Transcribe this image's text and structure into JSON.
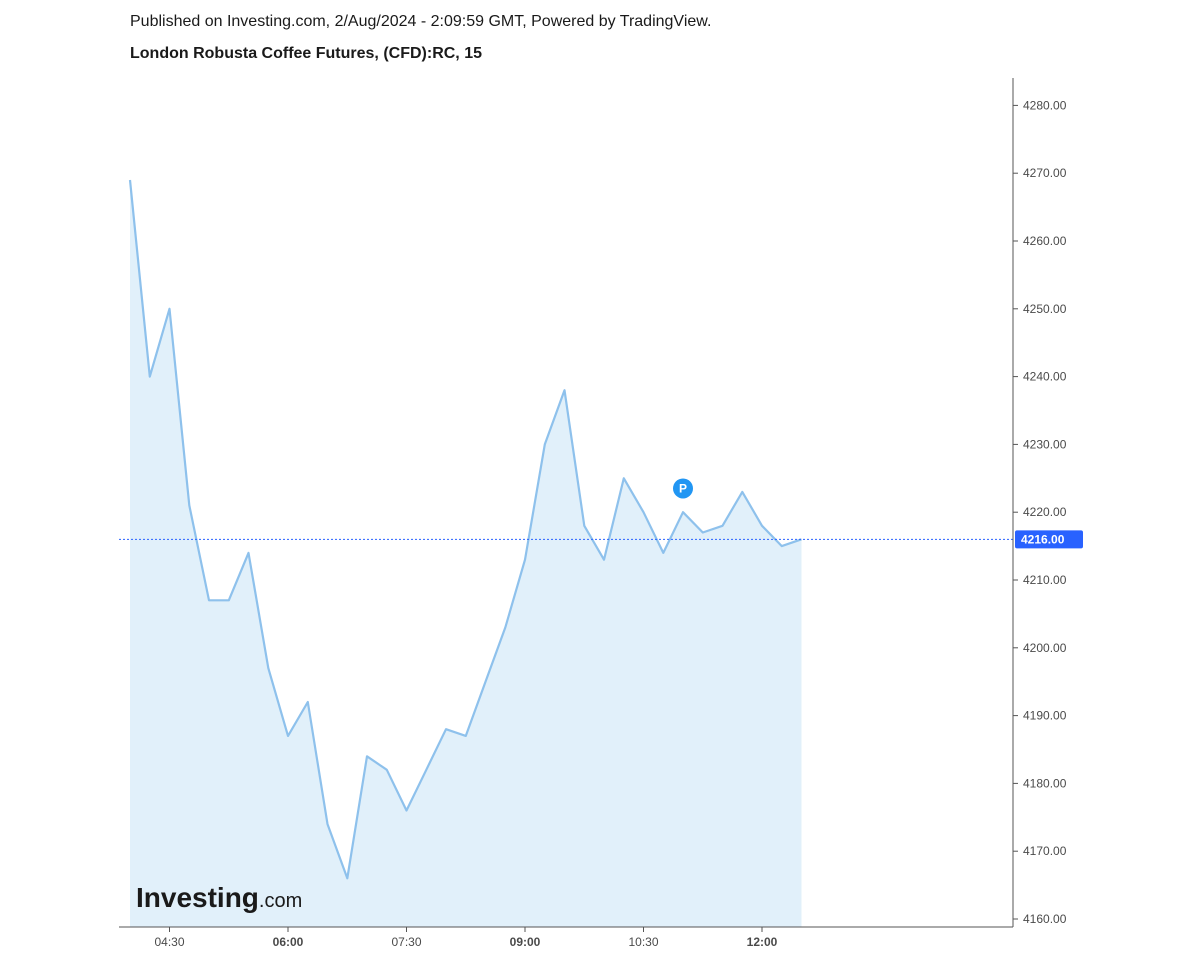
{
  "header": {
    "published": "Published on Investing.com, 2/Aug/2024 - 2:09:59 GMT, Powered by TradingView.",
    "title": "London Robusta Coffee Futures, (CFD):RC, 15"
  },
  "watermark": {
    "brand": "Investing",
    "suffix": ".com"
  },
  "colors": {
    "line": "#8ec1ec",
    "area": "#e1f0fa",
    "price_line": "#2962ff",
    "price_tag": "#2962ff",
    "marker": "#2196f3",
    "axis": "#555555"
  },
  "chart_data": {
    "type": "area",
    "title": "London Robusta Coffee Futures, (CFD):RC, 15",
    "interval_minutes": 15,
    "x_tick_labels": [
      {
        "label": "04:30",
        "bold": false
      },
      {
        "label": "06:00",
        "bold": true
      },
      {
        "label": "07:30",
        "bold": false
      },
      {
        "label": "09:00",
        "bold": true
      },
      {
        "label": "10:30",
        "bold": false
      },
      {
        "label": "12:00",
        "bold": true
      }
    ],
    "x_ticks_time": [
      "04:30",
      "06:00",
      "07:30",
      "09:00",
      "10:30",
      "12:00"
    ],
    "y_ticks": [
      4280,
      4270,
      4260,
      4250,
      4240,
      4230,
      4220,
      4210,
      4200,
      4190,
      4180,
      4170,
      4160
    ],
    "ylim": [
      4157,
      4284
    ],
    "y_tick_decimals": 2,
    "last_price": 4216.0,
    "last_price_label": "4216.00",
    "marker": {
      "label": "P",
      "time": "11:00",
      "value": 4223.5
    },
    "series": [
      {
        "x": [
          "04:00",
          "04:15",
          "04:30",
          "04:45",
          "05:00",
          "05:15",
          "05:30",
          "05:45",
          "06:00",
          "06:15",
          "06:30",
          "06:45",
          "07:00",
          "07:15",
          "07:30",
          "07:45",
          "08:00",
          "08:15",
          "08:30",
          "08:45",
          "09:00",
          "09:15",
          "09:30",
          "09:45",
          "10:00",
          "10:15",
          "10:30",
          "10:45",
          "11:00",
          "11:15",
          "11:30",
          "11:45",
          "12:00",
          "12:15",
          "12:30"
        ],
        "values": [
          4269,
          4240,
          4250,
          4221,
          4207,
          4207,
          4214,
          4197,
          4187,
          4192,
          4174,
          4166,
          4184,
          4182,
          4176,
          4182,
          4188,
          4187,
          4195,
          4203,
          4213,
          4230,
          4238,
          4218,
          4213,
          4225,
          4220,
          4214,
          4220,
          4217,
          4218,
          4223,
          4218,
          4215,
          4216
        ]
      }
    ]
  }
}
